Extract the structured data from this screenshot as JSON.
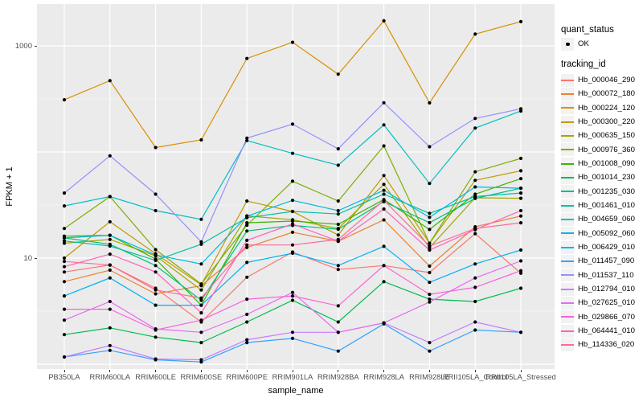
{
  "colors": {
    "panel_background": "#EBEBEB",
    "gridline": "#FFFFFF",
    "legend_key_background": "#F2F2F2",
    "axis_text": "#4D4D4D",
    "point": "#000000"
  },
  "chart_data": {
    "type": "line",
    "title": "",
    "xlabel": "sample_name",
    "ylabel": "FPKM + 1",
    "y_scale": "log10",
    "grid": true,
    "legend_position": "right",
    "y_ticks": [
      {
        "label": "1000",
        "value": 1000
      },
      {
        "label": "10",
        "value": 10
      }
    ],
    "y_gridlines_major": [
      1000,
      100,
      10,
      1
    ],
    "y_gridlines_minor": [
      316.23,
      31.62,
      3.162
    ],
    "ylim": [
      0.9,
      2500
    ],
    "categories": [
      "PB350LA",
      "RRIM600LA",
      "RRIM600LE",
      "RRIM600SE",
      "RRIM600PE",
      "RRIM901LA",
      "RRIM928BA",
      "RRIM928LA",
      "RRIM928LE",
      "RRII105LA_Control",
      "RRII105LA_Stressed"
    ],
    "legend": {
      "quant_status_title": "quant_status",
      "quant_status_items": [
        {
          "label": "OK",
          "marker": "point"
        }
      ],
      "tracking_id_title": "tracking_id"
    },
    "series": [
      {
        "tracking_id": "Hb_000046_290",
        "color": "#F8766D",
        "quant_status": "OK",
        "values": [
          7.4,
          8.6,
          5.2,
          2.5,
          6.6,
          11.4,
          7.8,
          8.5,
          7.3,
          17,
          7.2
        ]
      },
      {
        "tracking_id": "Hb_000072_180",
        "color": "#EA8331",
        "quant_status": "OK",
        "values": [
          6.0,
          7.7,
          4.6,
          5.5,
          12.6,
          17.5,
          14.4,
          22.9,
          8.4,
          19.7,
          24.9
        ]
      },
      {
        "tracking_id": "Hb_000224_120",
        "color": "#D89000",
        "quant_status": "OK",
        "values": [
          310,
          470,
          110,
          130,
          760,
          1080,
          540,
          1720,
          290,
          1290,
          1690
        ]
      },
      {
        "tracking_id": "Hb_000300_220",
        "color": "#C09B00",
        "quant_status": "OK",
        "values": [
          10.0,
          22.0,
          11.0,
          5.6,
          34.5,
          27.5,
          16.5,
          60,
          13.8,
          54,
          66.5
        ]
      },
      {
        "tracking_id": "Hb_000635_150",
        "color": "#A3A500",
        "quant_status": "OK",
        "values": [
          13.8,
          15.0,
          10.5,
          5.0,
          25.0,
          23.0,
          19.0,
          49.5,
          12.5,
          37,
          36.6
        ]
      },
      {
        "tracking_id": "Hb_000976_360",
        "color": "#7CAE00",
        "quant_status": "OK",
        "values": [
          19.0,
          38.0,
          12.0,
          5.7,
          20.4,
          53.0,
          34.5,
          114,
          13.8,
          65,
          87
        ]
      },
      {
        "tracking_id": "Hb_001008_090",
        "color": "#39B600",
        "quant_status": "OK",
        "values": [
          16.1,
          16.4,
          9.8,
          3.6,
          21.5,
          22.3,
          20.8,
          35.6,
          18.6,
          40,
          56
        ]
      },
      {
        "tracking_id": "Hb_001014_230",
        "color": "#00BB4E",
        "quant_status": "OK",
        "values": [
          1.9,
          2.2,
          1.8,
          1.6,
          2.5,
          4.0,
          2.5,
          6.0,
          4.1,
          3.9,
          5.2
        ]
      },
      {
        "tracking_id": "Hb_001235_030",
        "color": "#00BF7D",
        "quant_status": "OK",
        "values": [
          15.5,
          13.5,
          8.5,
          4.0,
          18.0,
          20.3,
          18.7,
          34.0,
          21.6,
          36.5,
          45.5
        ]
      },
      {
        "tracking_id": "Hb_001461_010",
        "color": "#00C1A3",
        "quant_status": "OK",
        "values": [
          14.5,
          13.0,
          9.5,
          13.5,
          24.0,
          27.5,
          26.0,
          40.0,
          26.4,
          38.0,
          41.0
        ]
      },
      {
        "tracking_id": "Hb_004659_060",
        "color": "#00BFC4",
        "quant_status": "OK",
        "values": [
          31,
          38,
          28,
          23.2,
          128,
          97,
          75,
          180,
          50.5,
          168,
          243
        ]
      },
      {
        "tracking_id": "Hb_005092_060",
        "color": "#00BAE0",
        "quant_status": "OK",
        "values": [
          15.5,
          16.4,
          10.7,
          8.8,
          24.8,
          35,
          28,
          43.5,
          24.2,
          46.8,
          45.5
        ]
      },
      {
        "tracking_id": "Hb_006429_010",
        "color": "#00B0F6",
        "quant_status": "OK",
        "values": [
          4.4,
          6.5,
          3.6,
          3.6,
          9.1,
          11.1,
          8.5,
          12.9,
          5.9,
          8.8,
          11.9
        ]
      },
      {
        "tracking_id": "Hb_011457_090",
        "color": "#35A2FF",
        "quant_status": "OK",
        "values": [
          1.17,
          1.35,
          1.1,
          1.05,
          1.6,
          1.75,
          1.33,
          2.4,
          1.33,
          2.1,
          2.0
        ]
      },
      {
        "tracking_id": "Hb_011537_110",
        "color": "#9590FF",
        "quant_status": "OK",
        "values": [
          41,
          92,
          40,
          14.2,
          135,
          183,
          107,
          291,
          112,
          207,
          255
        ]
      },
      {
        "tracking_id": "Hb_012794_010",
        "color": "#C77CFF",
        "quant_status": "OK",
        "values": [
          1.17,
          1.5,
          1.12,
          1.1,
          1.7,
          2.0,
          2.0,
          2.45,
          1.6,
          2.5,
          2.0
        ]
      },
      {
        "tracking_id": "Hb_027625_010",
        "color": "#E76BF3",
        "quant_status": "OK",
        "values": [
          2.6,
          3.9,
          2.15,
          2.0,
          2.95,
          4.75,
          2.0,
          2.45,
          3.85,
          6.5,
          9.4
        ]
      },
      {
        "tracking_id": "Hb_029866_070",
        "color": "#FA62DB",
        "quant_status": "OK",
        "values": [
          3.3,
          3.3,
          2.1,
          2.6,
          4.1,
          4.4,
          3.55,
          8.5,
          4.55,
          5.3,
          7.6
        ]
      },
      {
        "tracking_id": "Hb_064441_010",
        "color": "#FF62BC",
        "quant_status": "OK",
        "values": [
          8.3,
          10.9,
          7.4,
          3.05,
          14.7,
          21,
          14.4,
          29,
          11.9,
          18.5,
          28
        ]
      },
      {
        "tracking_id": "Hb_114336_020",
        "color": "#FF6A98",
        "quant_status": "OK",
        "values": [
          9.3,
          8.6,
          5.0,
          4.2,
          13.3,
          13.3,
          15,
          35,
          13,
          19,
          21.5
        ]
      }
    ]
  }
}
